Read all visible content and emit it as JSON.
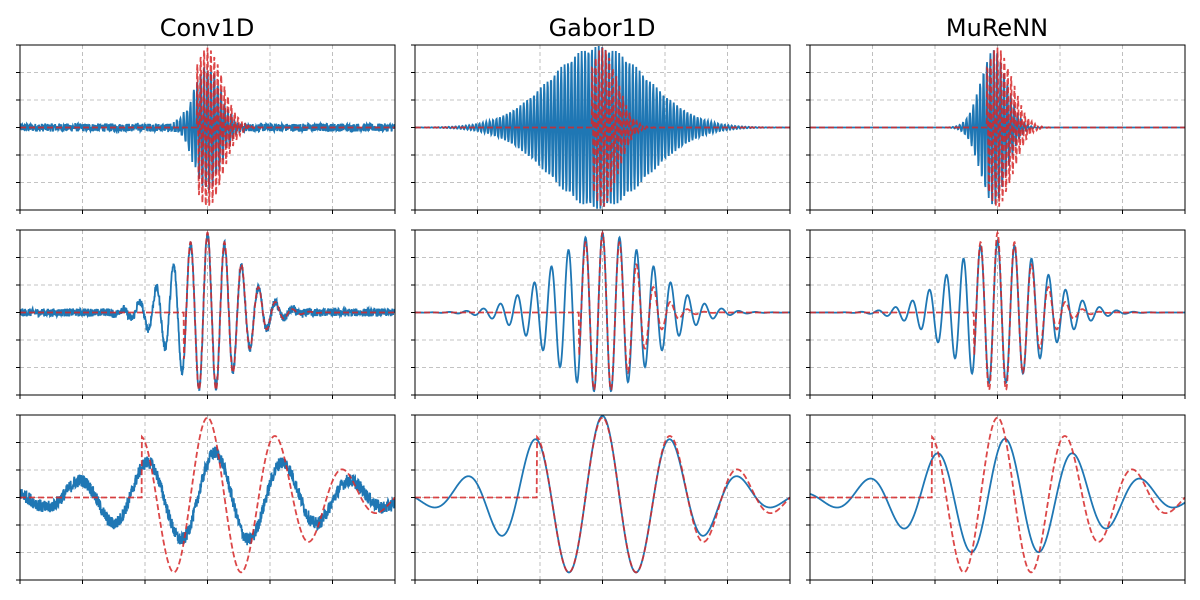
{
  "figure": {
    "columns": [
      "Conv1D",
      "Gabor1D",
      "MuReNN"
    ]
  },
  "chart_data": {
    "type": "line",
    "layout": "3x3 grid of line plots; columns = models, rows = increasing scale",
    "grid": true,
    "x_ticks": 7,
    "y_ticks": 7,
    "colors": {
      "learned": "#1f77b4",
      "target": "#d62728"
    },
    "series_styles": {
      "learned": "solid",
      "target": "dashed"
    },
    "panels": [
      {
        "row": 0,
        "col": 0,
        "learned": {
          "center": 0.5,
          "width": 0.035,
          "freq": 110,
          "amp": 0.75,
          "noise": 0.05
        },
        "target": {
          "center": 0.5,
          "width": 0.04,
          "freq": 110,
          "amp": 0.98,
          "causal": true
        }
      },
      {
        "row": 0,
        "col": 1,
        "learned": {
          "center": 0.49,
          "width": 0.13,
          "freq": 110,
          "amp": 1.0,
          "noise": 0.0
        },
        "target": {
          "center": 0.5,
          "width": 0.04,
          "freq": 110,
          "amp": 0.98,
          "causal": true
        }
      },
      {
        "row": 0,
        "col": 2,
        "learned": {
          "center": 0.49,
          "width": 0.035,
          "freq": 110,
          "amp": 0.95,
          "noise": 0.0
        },
        "target": {
          "center": 0.5,
          "width": 0.04,
          "freq": 110,
          "amp": 0.98,
          "causal": true
        }
      },
      {
        "row": 1,
        "col": 0,
        "learned": {
          "center": 0.5,
          "width": 0.09,
          "freq": 22,
          "amp": 0.95,
          "noise": 0.05
        },
        "target": {
          "center": 0.5,
          "width": 0.09,
          "freq": 22,
          "amp": 0.98,
          "causal": true
        }
      },
      {
        "row": 1,
        "col": 1,
        "learned": {
          "center": 0.5,
          "width": 0.13,
          "freq": 22,
          "amp": 0.98,
          "noise": 0.0
        },
        "target": {
          "center": 0.5,
          "width": 0.09,
          "freq": 22,
          "amp": 0.98,
          "causal": true
        }
      },
      {
        "row": 1,
        "col": 2,
        "learned": {
          "center": 0.5,
          "width": 0.12,
          "freq": 22,
          "amp": 0.88,
          "noise": 0.0
        },
        "target": {
          "center": 0.5,
          "width": 0.09,
          "freq": 22,
          "amp": 0.98,
          "causal": true
        }
      },
      {
        "row": 2,
        "col": 0,
        "learned": {
          "center": 0.52,
          "width": 0.26,
          "freq": 5.5,
          "amp": 0.55,
          "noise": 0.08
        },
        "target": {
          "center": 0.5,
          "width": 0.25,
          "freq": 5.5,
          "amp": 0.98,
          "causal": true
        }
      },
      {
        "row": 2,
        "col": 1,
        "learned": {
          "center": 0.5,
          "width": 0.22,
          "freq": 5.5,
          "amp": 1.0,
          "noise": 0.0
        },
        "target": {
          "center": 0.5,
          "width": 0.25,
          "freq": 5.5,
          "amp": 0.98,
          "causal": true
        }
      },
      {
        "row": 2,
        "col": 2,
        "learned": {
          "center": 0.52,
          "width": 0.24,
          "freq": 5.5,
          "amp": 0.72,
          "noise": 0.0
        },
        "target": {
          "center": 0.5,
          "width": 0.25,
          "freq": 5.5,
          "amp": 0.98,
          "causal": true
        }
      }
    ]
  }
}
